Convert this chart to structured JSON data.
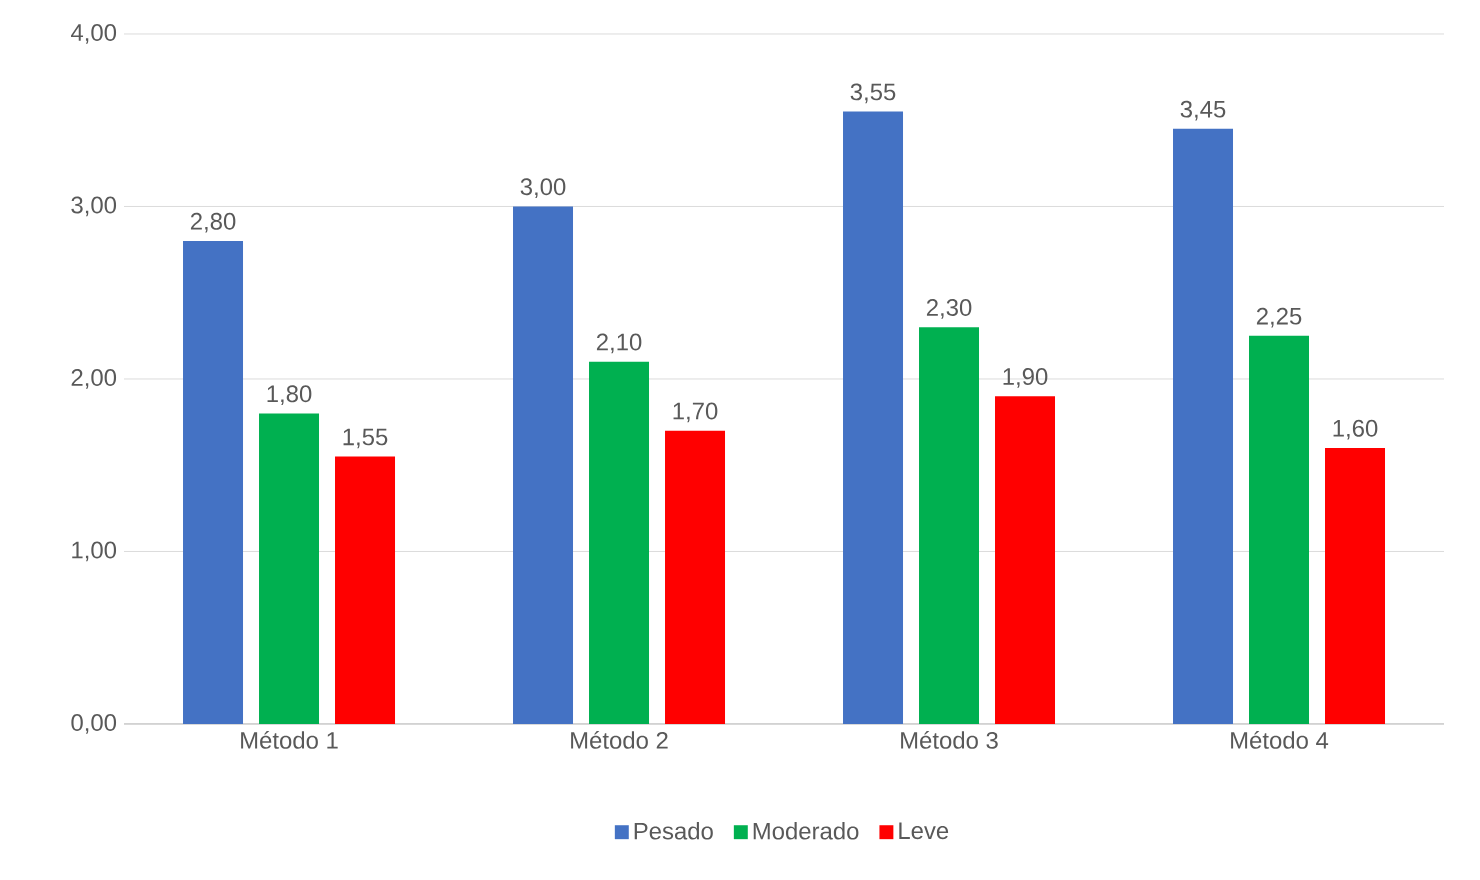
{
  "chart_data": {
    "type": "bar",
    "categories": [
      "Método 1",
      "Método 2",
      "Método 3",
      "Método 4"
    ],
    "series": [
      {
        "name": "Pesado",
        "color": "#4472c4",
        "values": [
          2.8,
          3.0,
          3.55,
          3.45
        ],
        "value_labels": [
          "2,80",
          "3,00",
          "3,55",
          "3,45"
        ]
      },
      {
        "name": "Moderado",
        "color": "#00b050",
        "values": [
          1.8,
          2.1,
          2.3,
          2.25
        ],
        "value_labels": [
          "1,80",
          "2,10",
          "2,30",
          "2,25"
        ]
      },
      {
        "name": "Leve",
        "color": "#ff0000",
        "values": [
          1.55,
          1.7,
          1.9,
          1.6
        ],
        "value_labels": [
          "1,55",
          "1,70",
          "1,90",
          "1,60"
        ]
      }
    ],
    "ylim": [
      0,
      4
    ],
    "yticks": [
      {
        "value": 0,
        "label": "0,00"
      },
      {
        "value": 1,
        "label": "1,00"
      },
      {
        "value": 2,
        "label": "2,00"
      },
      {
        "value": 3,
        "label": "3,00"
      },
      {
        "value": 4,
        "label": "4,00"
      }
    ],
    "grid": "y",
    "legend": "bottom"
  }
}
